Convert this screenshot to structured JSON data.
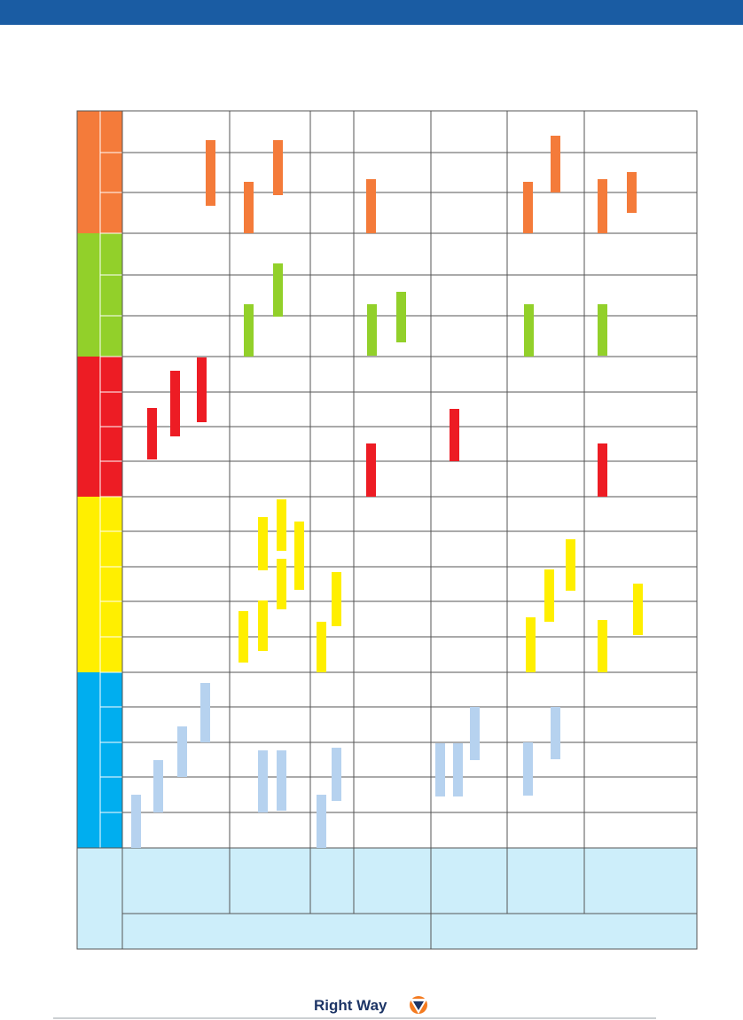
{
  "footer": {
    "logo": "Right Way"
  }
}
